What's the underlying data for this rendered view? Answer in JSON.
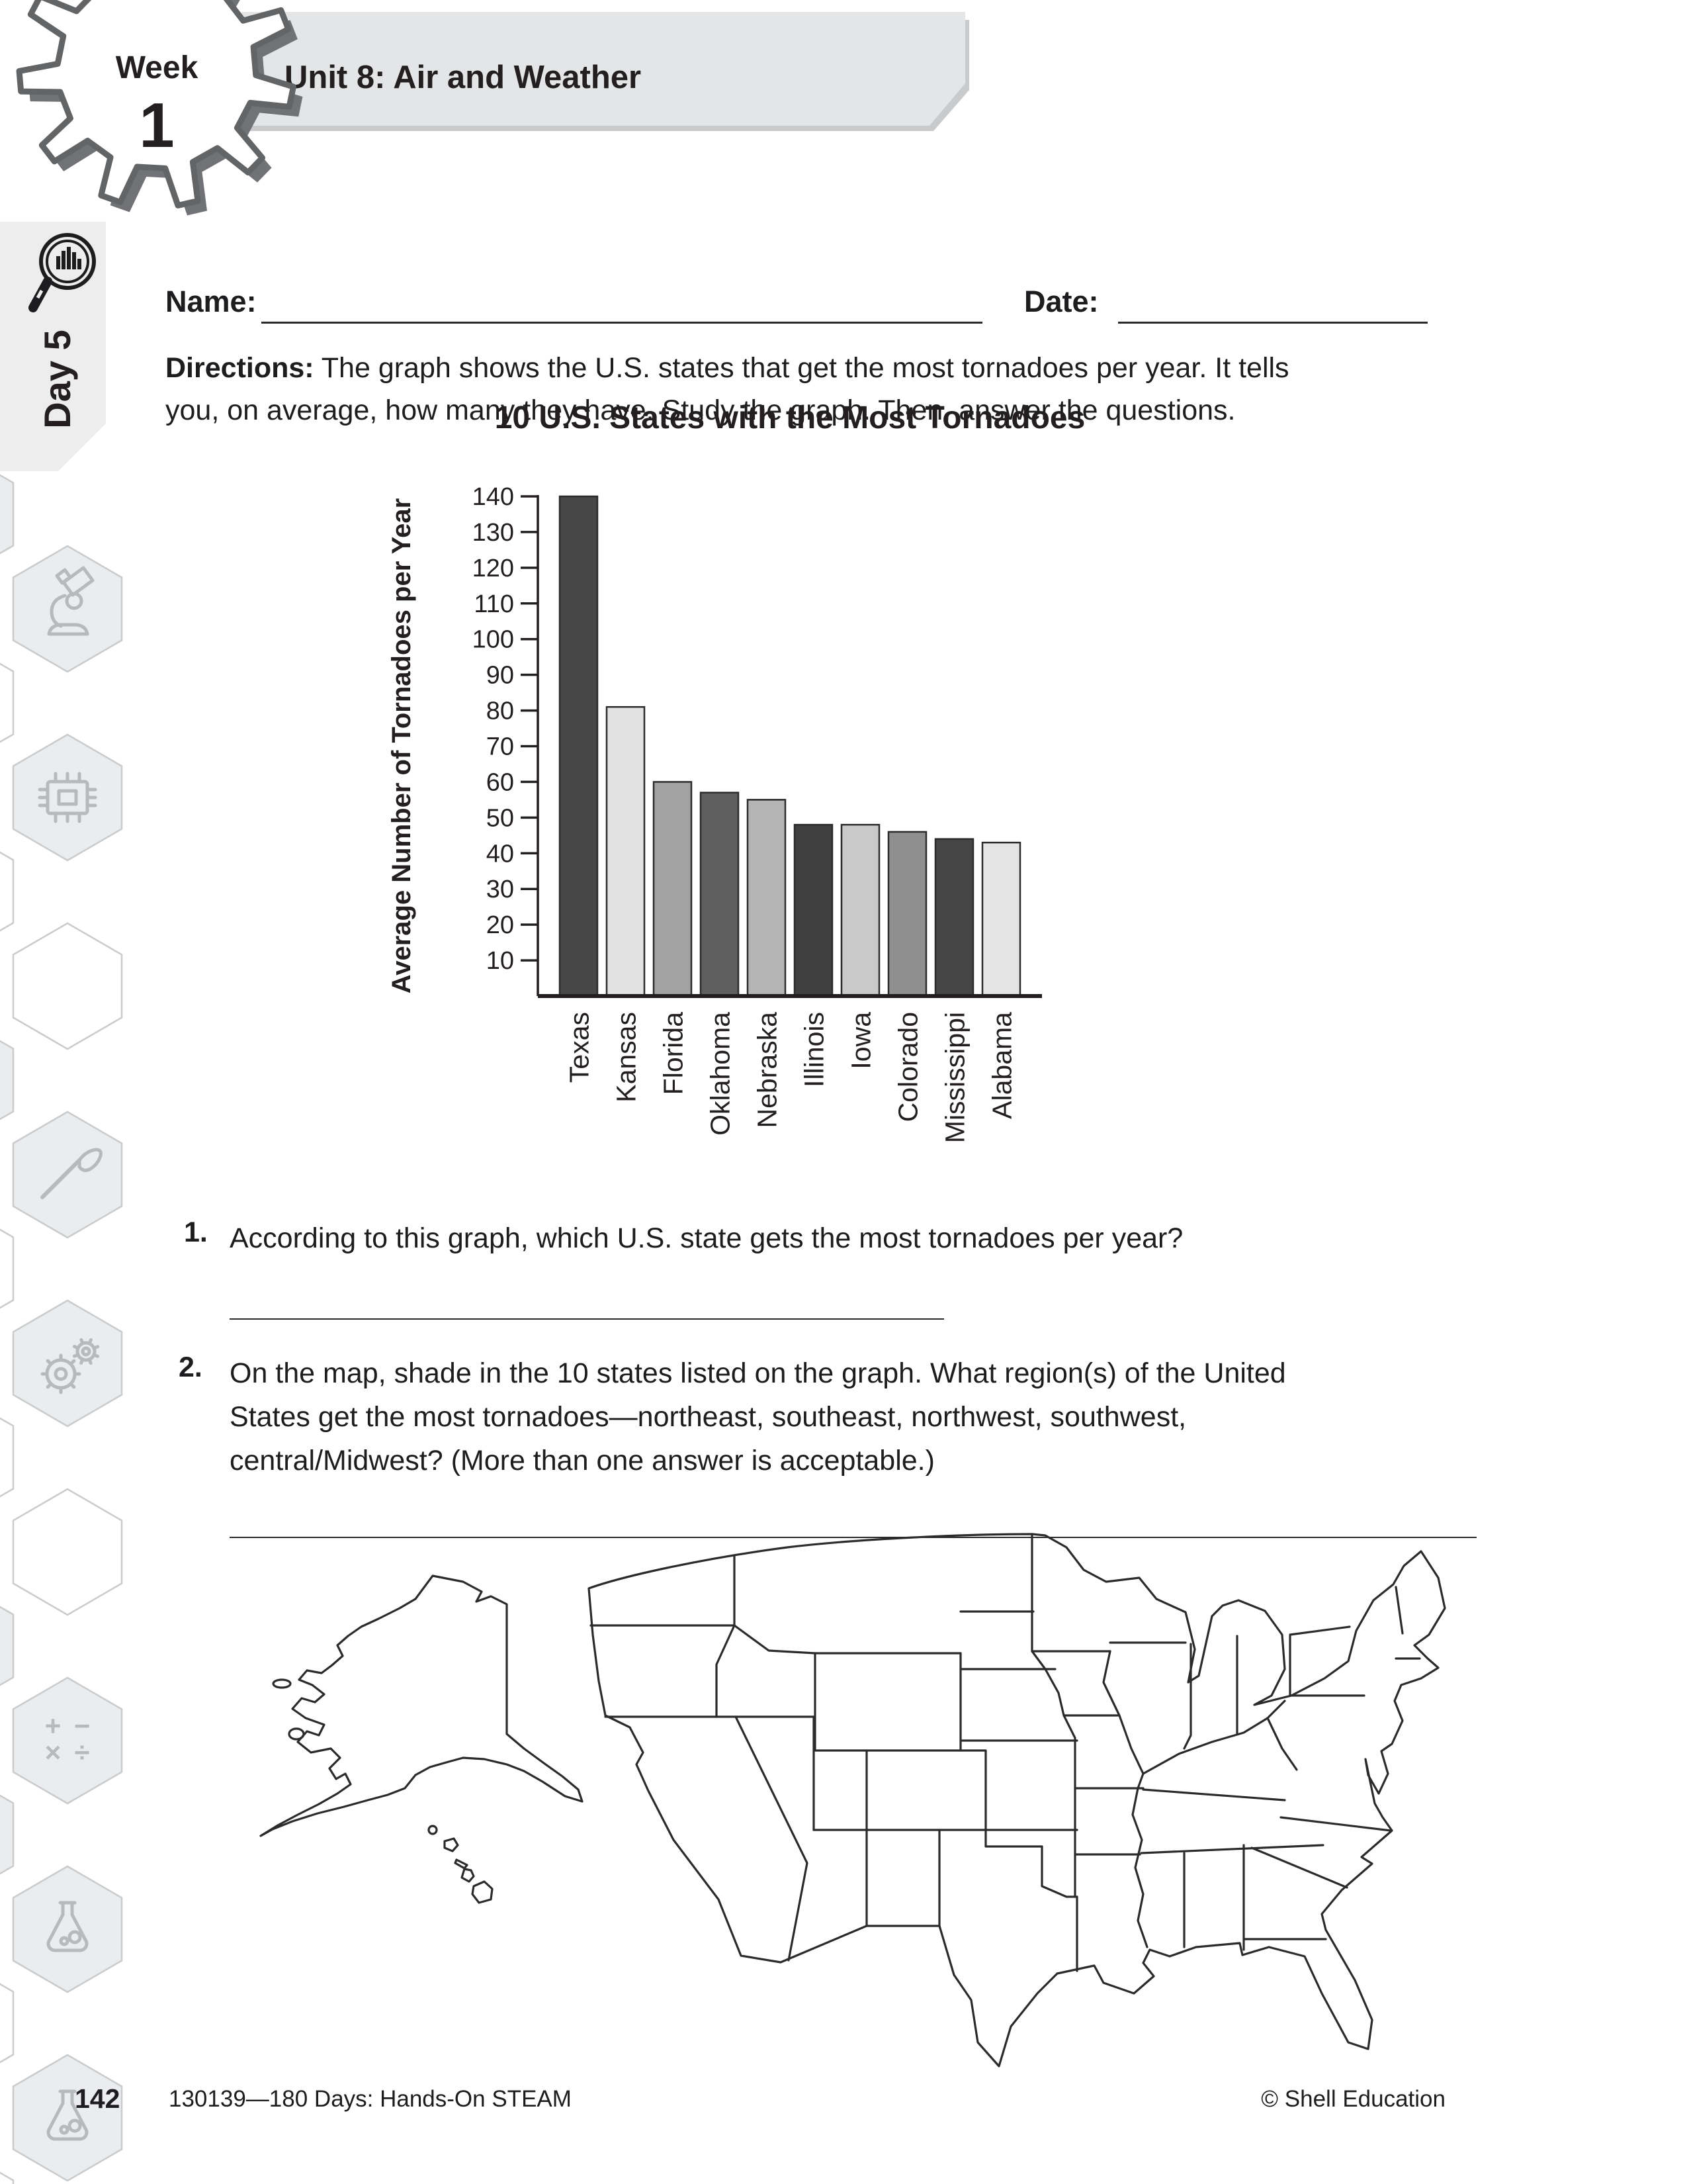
{
  "header": {
    "week_label": "Week",
    "week_number": "1",
    "unit_title": "Unit 8: Air and Weather",
    "day_tab": "Day 5"
  },
  "form": {
    "name_label": "Name:",
    "date_label": "Date:"
  },
  "directions": {
    "label": "Directions:",
    "text": "The graph shows the U.S. states that get the most tornadoes per year.  It tells you, on average, how many they have.  Study the graph.  Then, answer the questions."
  },
  "chart_data": {
    "type": "bar",
    "title": "10 U.S. States with the Most Tornadoes",
    "xlabel": "",
    "ylabel": "Average Number of Tornadoes per Year",
    "categories": [
      "Texas",
      "Kansas",
      "Florida",
      "Oklahoma",
      "Nebraska",
      "Illinois",
      "Iowa",
      "Colorado",
      "Mississippi",
      "Alabama"
    ],
    "values": [
      140,
      81,
      60,
      57,
      55,
      48,
      48,
      46,
      44,
      43
    ],
    "ylim": [
      0,
      140
    ],
    "yticks": [
      10,
      20,
      30,
      40,
      50,
      60,
      70,
      80,
      90,
      100,
      110,
      120,
      130,
      140
    ],
    "grid": false,
    "legend": null,
    "bar_colors": [
      "#474747",
      "#e2e2e2",
      "#a2a2a2",
      "#5f5f5f",
      "#b4b4b4",
      "#3f3f3f",
      "#c9c9c9",
      "#8f8f8f",
      "#454545",
      "#e4e4e4"
    ]
  },
  "questions": [
    {
      "number": "1.",
      "text": "According to this graph, which U.S. state gets the most tornadoes per year?"
    },
    {
      "number": "2.",
      "text": "On the map, shade in the 10 states listed on the graph.  What region(s) of the United States get the most tornadoes—northeast, southeast, northwest, southwest, central/Midwest?  (More than one answer is acceptable.)"
    }
  ],
  "map": {
    "regions": [
      "contiguous-united-states",
      "alaska",
      "hawaii"
    ]
  },
  "sidebar_icons": [
    "magnifier-chart-icon",
    "microscope-icon",
    "chip-icon",
    "paintbrush-icon",
    "gears-icon",
    "math-operations-icon",
    "flask-icon"
  ],
  "footer": {
    "page_number": "142",
    "product_line": "130139—180 Days: Hands-On STEAM",
    "copyright": "© Shell Education"
  },
  "colors": {
    "ink": "#231f20",
    "banner_gray": "#e4e5e6",
    "hex_outline": "#c9cbcd",
    "hex_fill": "#ebecee",
    "icon_stroke": "#b7b9bb"
  }
}
